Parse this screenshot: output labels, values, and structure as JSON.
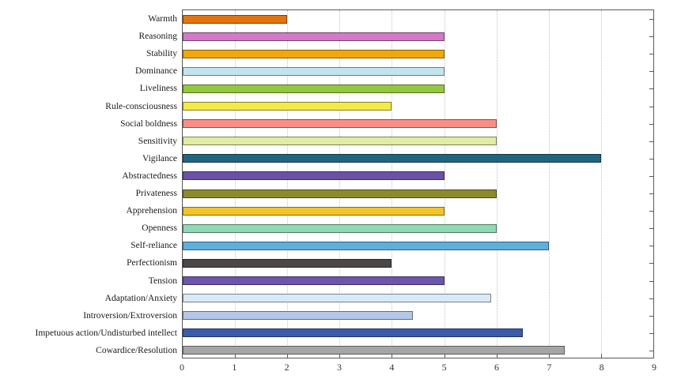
{
  "chart_data": {
    "type": "bar",
    "orientation": "horizontal",
    "title": "",
    "xlabel": "",
    "ylabel": "",
    "legend": "none",
    "grid": "vertical-dotted",
    "xlim": [
      0,
      9
    ],
    "x_ticks": [
      "0",
      "1",
      "2",
      "3",
      "4",
      "5",
      "6",
      "7",
      "8",
      "9"
    ],
    "categories": [
      "Warmth",
      "Reasoning",
      "Stability",
      "Dominance",
      "Liveliness",
      "Rule-consciousness",
      "Social boldness",
      "Sensitivity",
      "Vigilance",
      "Abstractedness",
      "Privateness",
      "Apprehension",
      "Openness",
      "Self-reliance",
      "Perfectionism",
      "Tension",
      "Adaptation/Anxiety",
      "Introversion/Extroversion",
      "Impetuous action/Undisturbed intellect",
      "Cowardice/Resolution"
    ],
    "values": [
      2,
      5,
      5,
      5,
      5,
      4,
      6,
      6,
      8,
      5,
      6,
      5,
      6,
      7,
      4,
      5,
      5.9,
      4.4,
      6.5,
      7.3
    ],
    "bar_colors": [
      "#e4740e",
      "#d478c8",
      "#f0a80a",
      "#c2e4ef",
      "#92c83e",
      "#f4ea47",
      "#f98e88",
      "#e0eda2",
      "#20657f",
      "#6a51a5",
      "#8b8b2e",
      "#f3c32b",
      "#8fd9b6",
      "#5faedc",
      "#4b4847",
      "#6c55ac",
      "#dae9f6",
      "#b4c7e7",
      "#3a5ba9",
      "#a5a5a5"
    ],
    "axis_color": "#5a5a5a",
    "grid_color": "#c4c4c4",
    "tick_label_color": "#333333"
  }
}
